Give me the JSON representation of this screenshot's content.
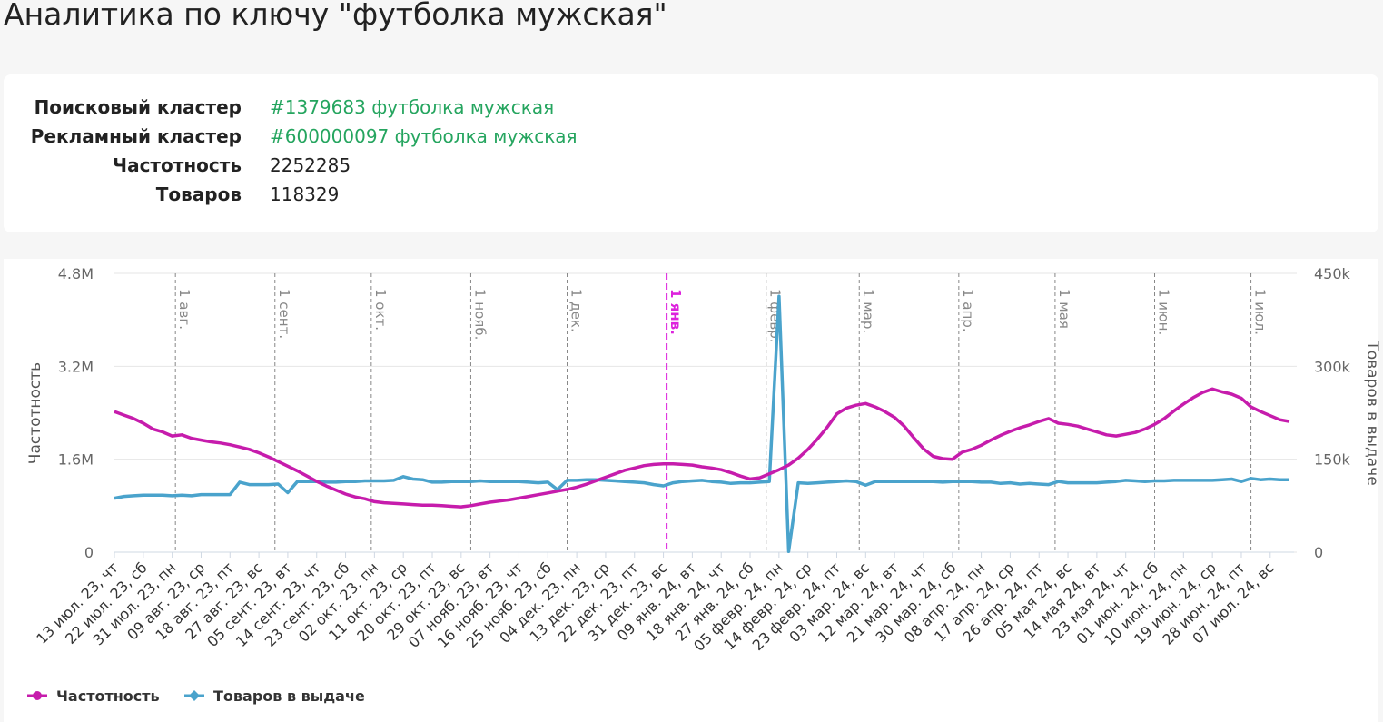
{
  "page": {
    "title": "Аналитика по ключу \"футболка мужская\"",
    "info": [
      {
        "label": "Поисковый кластер",
        "value": "#1379683 футболка мужская",
        "link": true
      },
      {
        "label": "Рекламный кластер",
        "value": "#600000097 футболка мужская",
        "link": true
      },
      {
        "label": "Частотность",
        "value": "2252285"
      },
      {
        "label": "Товаров",
        "value": "118329"
      }
    ]
  },
  "chart_data": {
    "type": "line",
    "y_label": "Частотность",
    "y2_label": "Товаров в выдаче",
    "x": [
      "2023-07-13",
      "2023-07-16",
      "2023-07-19",
      "2023-07-22",
      "2023-07-25",
      "2023-07-28",
      "2023-07-31",
      "2023-08-03",
      "2023-08-06",
      "2023-08-09",
      "2023-08-12",
      "2023-08-15",
      "2023-08-18",
      "2023-08-21",
      "2023-08-24",
      "2023-08-27",
      "2023-08-30",
      "2023-09-02",
      "2023-09-05",
      "2023-09-08",
      "2023-09-11",
      "2023-09-14",
      "2023-09-17",
      "2023-09-20",
      "2023-09-23",
      "2023-09-26",
      "2023-09-29",
      "2023-10-02",
      "2023-10-05",
      "2023-10-08",
      "2023-10-11",
      "2023-10-14",
      "2023-10-17",
      "2023-10-20",
      "2023-10-23",
      "2023-10-26",
      "2023-10-29",
      "2023-11-01",
      "2023-11-04",
      "2023-11-07",
      "2023-11-10",
      "2023-11-13",
      "2023-11-16",
      "2023-11-19",
      "2023-11-22",
      "2023-11-25",
      "2023-11-28",
      "2023-12-01",
      "2023-12-04",
      "2023-12-07",
      "2023-12-10",
      "2023-12-13",
      "2023-12-16",
      "2023-12-19",
      "2023-12-22",
      "2023-12-25",
      "2023-12-28",
      "2023-12-31",
      "2024-01-03",
      "2024-01-06",
      "2024-01-09",
      "2024-01-12",
      "2024-01-15",
      "2024-01-18",
      "2024-01-21",
      "2024-01-24",
      "2024-01-27",
      "2024-01-30",
      "2024-02-02",
      "2024-02-05",
      "2024-02-08",
      "2024-02-11",
      "2024-02-14",
      "2024-02-17",
      "2024-02-20",
      "2024-02-23",
      "2024-02-26",
      "2024-02-29",
      "2024-03-03",
      "2024-03-06",
      "2024-03-09",
      "2024-03-12",
      "2024-03-15",
      "2024-03-18",
      "2024-03-21",
      "2024-03-24",
      "2024-03-27",
      "2024-03-30",
      "2024-04-02",
      "2024-04-05",
      "2024-04-08",
      "2024-04-11",
      "2024-04-14",
      "2024-04-17",
      "2024-04-20",
      "2024-04-23",
      "2024-04-26",
      "2024-04-29",
      "2024-05-02",
      "2024-05-05",
      "2024-05-08",
      "2024-05-11",
      "2024-05-14",
      "2024-05-17",
      "2024-05-20",
      "2024-05-23",
      "2024-05-26",
      "2024-05-29",
      "2024-06-01",
      "2024-06-04",
      "2024-06-07",
      "2024-06-10",
      "2024-06-13",
      "2024-06-16",
      "2024-06-19",
      "2024-06-22",
      "2024-06-25",
      "2024-06-28",
      "2024-07-01",
      "2024-07-04",
      "2024-07-07",
      "2024-07-10",
      "2024-07-13"
    ],
    "series": [
      {
        "name": "Частотность",
        "color": "#c61cac",
        "axis": "y",
        "values": [
          2420000,
          2360000,
          2300000,
          2220000,
          2120000,
          2070000,
          2000000,
          2020000,
          1960000,
          1930000,
          1900000,
          1880000,
          1850000,
          1810000,
          1770000,
          1710000,
          1640000,
          1560000,
          1480000,
          1400000,
          1310000,
          1220000,
          1140000,
          1070000,
          1000000,
          950000,
          920000,
          870000,
          850000,
          840000,
          830000,
          820000,
          810000,
          810000,
          800000,
          790000,
          780000,
          800000,
          830000,
          860000,
          880000,
          900000,
          930000,
          960000,
          990000,
          1020000,
          1050000,
          1080000,
          1120000,
          1170000,
          1230000,
          1290000,
          1350000,
          1410000,
          1450000,
          1490000,
          1510000,
          1520000,
          1520000,
          1510000,
          1500000,
          1470000,
          1450000,
          1420000,
          1370000,
          1310000,
          1260000,
          1280000,
          1350000,
          1420000,
          1500000,
          1620000,
          1770000,
          1950000,
          2150000,
          2380000,
          2480000,
          2530000,
          2560000,
          2500000,
          2420000,
          2320000,
          2170000,
          1970000,
          1780000,
          1650000,
          1610000,
          1600000,
          1720000,
          1770000,
          1840000,
          1930000,
          2010000,
          2080000,
          2140000,
          2190000,
          2250000,
          2300000,
          2220000,
          2200000,
          2170000,
          2120000,
          2070000,
          2020000,
          2000000,
          2030000,
          2060000,
          2120000,
          2200000,
          2300000,
          2430000,
          2550000,
          2660000,
          2750000,
          2810000,
          2760000,
          2720000,
          2650000,
          2500000,
          2420000,
          2350000,
          2280000,
          2250000
        ]
      },
      {
        "name": "Товаров в выдаче",
        "color": "#4aa3cc",
        "axis": "y2",
        "values": [
          87000,
          90000,
          91000,
          92000,
          92000,
          92000,
          91000,
          92000,
          91000,
          93000,
          93000,
          93000,
          93000,
          113000,
          109000,
          109000,
          109000,
          110000,
          96000,
          114000,
          114000,
          114000,
          113000,
          113000,
          114000,
          114000,
          115000,
          115000,
          115000,
          116000,
          122000,
          118000,
          117000,
          113000,
          113000,
          114000,
          114000,
          114000,
          115000,
          114000,
          114000,
          114000,
          114000,
          113000,
          112000,
          113000,
          101000,
          116000,
          116000,
          117000,
          117000,
          116000,
          115000,
          114000,
          113000,
          112000,
          109000,
          107000,
          112000,
          114000,
          115000,
          116000,
          114000,
          113000,
          111000,
          112000,
          112000,
          113000,
          114000,
          413000,
          1000,
          112000,
          111000,
          112000,
          113000,
          114000,
          115000,
          114000,
          108000,
          114000,
          114000,
          114000,
          114000,
          114000,
          114000,
          114000,
          113000,
          114000,
          114000,
          114000,
          113000,
          113000,
          111000,
          112000,
          110000,
          111000,
          110000,
          109000,
          114000,
          112000,
          112000,
          112000,
          112000,
          113000,
          114000,
          116000,
          115000,
          114000,
          115000,
          115000,
          116000,
          116000,
          116000,
          116000,
          116000,
          117000,
          118000,
          114000,
          119000,
          117000,
          118000,
          117000,
          117000
        ]
      }
    ],
    "xlim": [
      "2023-07-13",
      "2024-07-13"
    ],
    "xticks": [
      {
        "value": "2023-07-13",
        "label": "13 июл. 23, чт"
      },
      {
        "value": "2023-07-22",
        "label": "22 июл. 23, сб"
      },
      {
        "value": "2023-07-31",
        "label": "31 июл. 23, пн"
      },
      {
        "value": "2023-08-09",
        "label": "09 авг. 23, ср"
      },
      {
        "value": "2023-08-18",
        "label": "18 авг. 23, пт"
      },
      {
        "value": "2023-08-27",
        "label": "27 авг. 23, вс"
      },
      {
        "value": "2023-09-05",
        "label": "05 сент. 23, вт"
      },
      {
        "value": "2023-09-14",
        "label": "14 сент. 23, чт"
      },
      {
        "value": "2023-09-23",
        "label": "23 сент. 23, сб"
      },
      {
        "value": "2023-10-02",
        "label": "02 окт. 23, пн"
      },
      {
        "value": "2023-10-11",
        "label": "11 окт. 23, ср"
      },
      {
        "value": "2023-10-20",
        "label": "20 окт. 23, пт"
      },
      {
        "value": "2023-10-29",
        "label": "29 окт. 23, вс"
      },
      {
        "value": "2023-11-07",
        "label": "07 нояб. 23, вт"
      },
      {
        "value": "2023-11-16",
        "label": "16 нояб. 23, чт"
      },
      {
        "value": "2023-11-25",
        "label": "25 нояб. 23, сб"
      },
      {
        "value": "2023-12-04",
        "label": "04 дек. 23, пн"
      },
      {
        "value": "2023-12-13",
        "label": "13 дек. 23, ср"
      },
      {
        "value": "2023-12-22",
        "label": "22 дек. 23, пт"
      },
      {
        "value": "2023-12-31",
        "label": "31 дек. 23, вс"
      },
      {
        "value": "2024-01-09",
        "label": "09 янв. 24, вт"
      },
      {
        "value": "2024-01-18",
        "label": "18 янв. 24, чт"
      },
      {
        "value": "2024-01-27",
        "label": "27 янв. 24, сб"
      },
      {
        "value": "2024-02-05",
        "label": "05 февр. 24, пн"
      },
      {
        "value": "2024-02-14",
        "label": "14 февр. 24, ср"
      },
      {
        "value": "2024-02-23",
        "label": "23 февр. 24, пт"
      },
      {
        "value": "2024-03-03",
        "label": "03 мар. 24, вс"
      },
      {
        "value": "2024-03-12",
        "label": "12 мар. 24, вт"
      },
      {
        "value": "2024-03-21",
        "label": "21 мар. 24, чт"
      },
      {
        "value": "2024-03-30",
        "label": "30 мар. 24, сб"
      },
      {
        "value": "2024-04-08",
        "label": "08 апр. 24, пн"
      },
      {
        "value": "2024-04-17",
        "label": "17 апр. 24, ср"
      },
      {
        "value": "2024-04-26",
        "label": "26 апр. 24, пт"
      },
      {
        "value": "2024-05-05",
        "label": "05 мая 24, вс"
      },
      {
        "value": "2024-05-14",
        "label": "14 мая 24, вт"
      },
      {
        "value": "2024-05-23",
        "label": "23 мая 24, чт"
      },
      {
        "value": "2024-06-01",
        "label": "01 июн. 24, сб"
      },
      {
        "value": "2024-06-10",
        "label": "10 июн. 24, пн"
      },
      {
        "value": "2024-06-19",
        "label": "19 июн. 24, ср"
      },
      {
        "value": "2024-06-28",
        "label": "28 июн. 24, пт"
      },
      {
        "value": "2024-07-07",
        "label": "07 июл. 24, вс"
      }
    ],
    "ylim": [
      0,
      4800000
    ],
    "yticks": [
      0,
      {
        "value": 1600000,
        "label": "1.6M"
      },
      {
        "value": 3200000,
        "label": "3.2M"
      },
      {
        "value": 4800000,
        "label": "4.8M"
      }
    ],
    "y2lim": [
      0,
      450000
    ],
    "y2ticks": [
      0,
      {
        "value": 150000,
        "label": "150k"
      },
      {
        "value": 300000,
        "label": "300k"
      },
      {
        "value": 450000,
        "label": "450k"
      }
    ],
    "grid": true,
    "legend": "bottom-left",
    "annotations": [
      {
        "x": "2023-08-01",
        "label": "1 авг.",
        "color": "#888888"
      },
      {
        "x": "2023-09-01",
        "label": "1 сент.",
        "color": "#888888"
      },
      {
        "x": "2023-10-01",
        "label": "1 окт.",
        "color": "#888888"
      },
      {
        "x": "2023-11-01",
        "label": "1 нояб.",
        "color": "#888888"
      },
      {
        "x": "2023-12-01",
        "label": "1 дек.",
        "color": "#888888"
      },
      {
        "x": "2024-01-01",
        "label": "1 янв.",
        "color": "#dd22dd"
      },
      {
        "x": "2024-02-01",
        "label": "1 февр.",
        "color": "#888888"
      },
      {
        "x": "2024-03-01",
        "label": "1 мар.",
        "color": "#888888"
      },
      {
        "x": "2024-04-01",
        "label": "1 апр.",
        "color": "#888888"
      },
      {
        "x": "2024-05-01",
        "label": "1 мая",
        "color": "#888888"
      },
      {
        "x": "2024-06-01",
        "label": "1 июн.",
        "color": "#888888"
      },
      {
        "x": "2024-07-01",
        "label": "1 июл.",
        "color": "#888888"
      }
    ]
  }
}
